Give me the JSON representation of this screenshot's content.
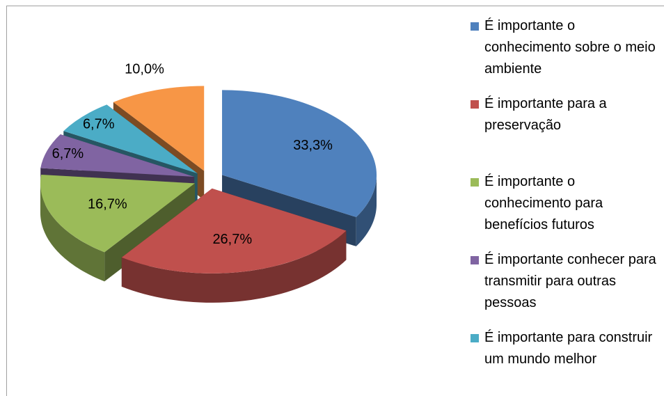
{
  "chart_data": {
    "type": "pie",
    "categories": [
      "É importante o conhecimento sobre o meio ambiente",
      "É importante para a preservação",
      "É importante o conhecimento para benefícios futuros",
      "É importante conhecer para transmitir para outras pessoas",
      "É importante para construir um mundo melhor",
      null
    ],
    "values": [
      33.3,
      26.7,
      16.7,
      6.7,
      6.7,
      10.0
    ],
    "value_labels": [
      "33,3%",
      "26,7%",
      "16,7%",
      "6,7%",
      "6,7%",
      "10,0%"
    ],
    "colors": [
      "#4f81bd",
      "#c0504d",
      "#9bbb59",
      "#8064a2",
      "#4bacc6",
      "#f79646"
    ],
    "legend": "right"
  }
}
